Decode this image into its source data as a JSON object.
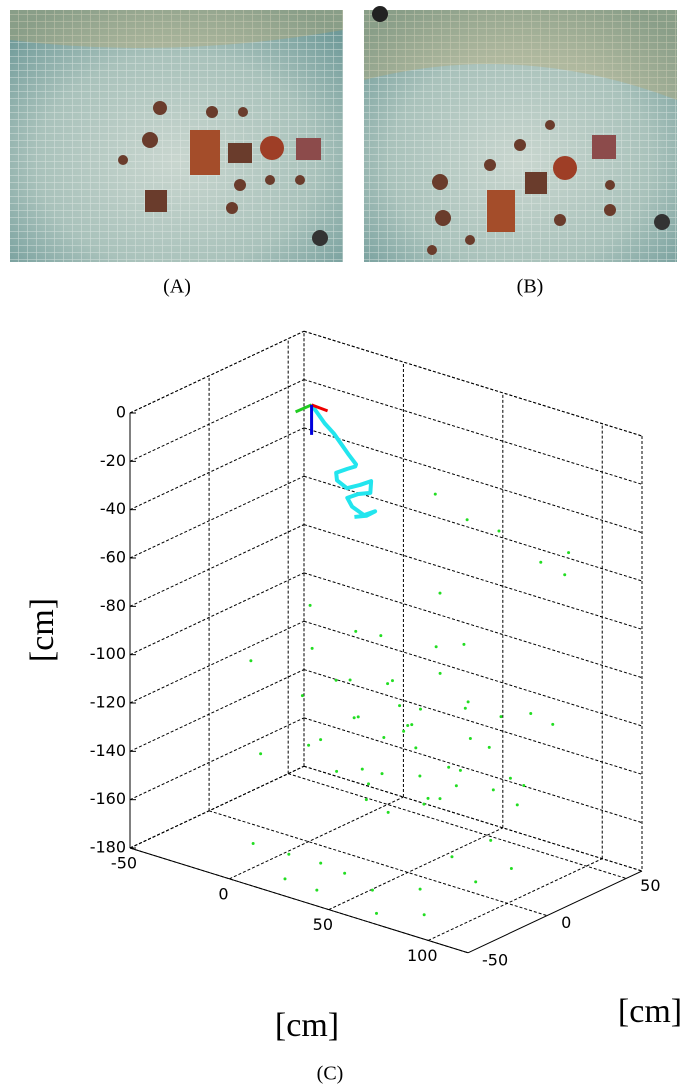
{
  "figure": {
    "panels": [
      {
        "caption": "(A)"
      },
      {
        "caption": "(B)"
      }
    ],
    "caption": "(C)"
  },
  "chart_data": {
    "type": "scatter3d",
    "xlabel": "[cm]",
    "ylabel": "[cm]",
    "zlabel": "[cm]",
    "xlim": [
      -50,
      120
    ],
    "ylim": [
      -50,
      60
    ],
    "zlim": [
      -180,
      0
    ],
    "xticks": [
      -50,
      0,
      50,
      100
    ],
    "yticks": [
      -50,
      0,
      50
    ],
    "zticks": [
      0,
      -20,
      -40,
      -60,
      -80,
      -100,
      -120,
      -140,
      -160,
      -180
    ],
    "grid": true,
    "series": [
      {
        "color": "#22dd22",
        "marker": "dot",
        "x": [
          -30,
          -20,
          -10,
          0,
          5,
          10,
          15,
          20,
          25,
          30,
          35,
          40,
          45,
          50,
          55,
          60,
          65,
          70,
          75,
          80,
          85,
          90,
          95,
          100,
          105,
          -25,
          -15,
          -5,
          8,
          12,
          18,
          22,
          28,
          33,
          38,
          42,
          48,
          52,
          58,
          62,
          68,
          72,
          78,
          82,
          88,
          92,
          98,
          -35,
          -40,
          0,
          10,
          20,
          30,
          40,
          50,
          60,
          70,
          80,
          90,
          100,
          110,
          60,
          40,
          20,
          85,
          95,
          105,
          110,
          100,
          90
        ],
        "y": [
          40,
          55,
          30,
          50,
          20,
          45,
          10,
          35,
          0,
          25,
          -10,
          15,
          -20,
          5,
          30,
          -5,
          40,
          -15,
          20,
          -25,
          10,
          -30,
          35,
          -35,
          0,
          -5,
          15,
          52,
          -10,
          38,
          25,
          -20,
          48,
          5,
          -30,
          18,
          42,
          -15,
          28,
          -40,
          8,
          50,
          -2,
          33,
          -22,
          12,
          -8,
          45,
          20,
          -35,
          -25,
          -40,
          -30,
          -45,
          -40,
          -35,
          -45,
          -30,
          -40,
          -20,
          -10,
          45,
          50,
          55,
          40,
          45,
          30,
          -40,
          -45,
          -30
        ],
        "z": [
          -120,
          -115,
          -125,
          -130,
          -118,
          -135,
          -128,
          -140,
          -122,
          -132,
          -138,
          -126,
          -145,
          -130,
          -120,
          -136,
          -124,
          -142,
          -128,
          -134,
          -140,
          -130,
          -118,
          -150,
          -138,
          -110,
          -128,
          -112,
          -135,
          -122,
          -140,
          -126,
          -118,
          -145,
          -132,
          -120,
          -138,
          -150,
          -116,
          -128,
          -142,
          -124,
          -130,
          -146,
          -120,
          -134,
          -152,
          -105,
          -160,
          -170,
          -175,
          -178,
          -172,
          -176,
          -168,
          -174,
          -178,
          -170,
          -175,
          -165,
          -160,
          -50,
          -52,
          -48,
          -55,
          -50,
          -52,
          -58,
          -60,
          -45
        ]
      },
      {
        "color": "#22e5ee",
        "marker": "line",
        "x": [
          -8,
          -6,
          -3,
          0,
          3,
          6,
          8,
          6,
          2,
          -2,
          0,
          5,
          10,
          14,
          12,
          6,
          2,
          6,
          12,
          16,
          10,
          4
        ],
        "y": [
          12,
          13,
          14,
          16,
          17,
          18,
          20,
          22,
          22,
          20,
          18,
          18,
          20,
          22,
          24,
          24,
          22,
          20,
          20,
          22,
          24,
          24
        ],
        "z": [
          -5,
          -8,
          -12,
          -16,
          -20,
          -24,
          -28,
          -30,
          -32,
          -34,
          -36,
          -38,
          -36,
          -34,
          -40,
          -42,
          -44,
          -46,
          -48,
          -46,
          -50,
          -52
        ]
      }
    ]
  }
}
